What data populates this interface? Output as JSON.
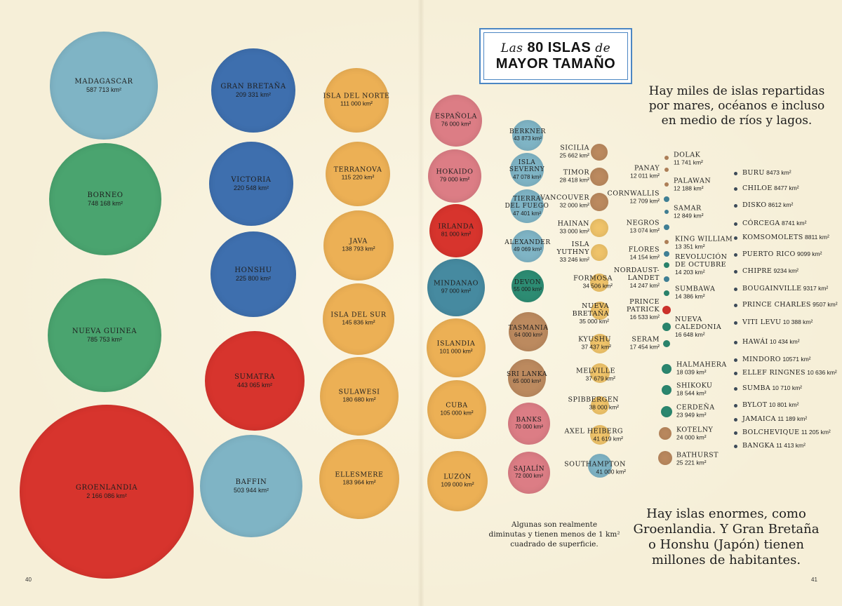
{
  "title": {
    "line1_italic_a": "Las",
    "line1_bold": "80 ISLAS",
    "line1_italic_b": "de",
    "line2": "MAYOR TAMAÑO"
  },
  "intro_text": [
    "Hay miles de islas repartidas",
    "por mares, océanos e incluso",
    "en medio de ríos y lagos."
  ],
  "outro_text": [
    "Hay islas enormes, como",
    "Groenlandia. Y Gran Bretaña",
    "o Honshu (Japón) tienen",
    "millones de habitantes."
  ],
  "tiny_note": [
    "Algunas son realmente",
    "diminutas y tienen  menos de 1 km²",
    "cuadrado de superficie."
  ],
  "page_left": "40",
  "page_right": "41",
  "colors": {
    "blue": "#3e6fae",
    "lightblue": "#7fb4c5",
    "green": "#4aa46f",
    "red": "#d7342d",
    "orange": "#ecb055",
    "pink": "#dc7d85",
    "teal": "#468aa0",
    "darkteal": "#2d8c73",
    "brown": "#bc8a5f",
    "paleorange": "#f0c46a",
    "background": "#f6efd8",
    "title_border": "#4b86c3"
  },
  "islands": [
    {
      "name": "MADAGASCAR",
      "area": "587 713 km²",
      "color": "#7fb4c5"
    },
    {
      "name": "BORNEO",
      "area": "748 168 km²",
      "color": "#4aa46f"
    },
    {
      "name": "NUEVA GUINEA",
      "area": "785 753 km²",
      "color": "#4aa46f"
    },
    {
      "name": "GROENLANDIA",
      "area": "2 166 086 km²",
      "color": "#d7342d"
    },
    {
      "name": "GRAN BRETAÑA",
      "area": "209 331 km²",
      "color": "#3e6fae"
    },
    {
      "name": "VICTORIA",
      "area": "220 548 km²",
      "color": "#3e6fae"
    },
    {
      "name": "HONSHU",
      "area": "225 800 km²",
      "color": "#3e6fae"
    },
    {
      "name": "SUMATRA",
      "area": "443 065 km²",
      "color": "#d7342d"
    },
    {
      "name": "BAFFIN",
      "area": "503 944 km²",
      "color": "#7fb4c5"
    },
    {
      "name": "ISLA DEL NORTE",
      "area": "111 000 km²",
      "color": "#ecb055"
    },
    {
      "name": "TERRANOVA",
      "area": "115 220 km²",
      "color": "#ecb055"
    },
    {
      "name": "JAVA",
      "area": "138 793 km²",
      "color": "#ecb055"
    },
    {
      "name": "ISLA DEL SUR",
      "area": "145 836 km²",
      "color": "#ecb055"
    },
    {
      "name": "SULAWESI",
      "area": "180 680 km²",
      "color": "#ecb055"
    },
    {
      "name": "ELLESMERE",
      "area": "183 964 km²",
      "color": "#ecb055"
    },
    {
      "name": "ESPAÑOLA",
      "area": "76 000 km²",
      "color": "#dc7d85"
    },
    {
      "name": "HOKAIDO",
      "area": "79 000 km²",
      "color": "#dc7d85"
    },
    {
      "name": "IRLANDA",
      "area": "81 000 km²",
      "color": "#d7342d"
    },
    {
      "name": "MINDANAO",
      "area": "97 000 km²",
      "color": "#468aa0"
    },
    {
      "name": "ISLANDIA",
      "area": "101 000 km²",
      "color": "#ecb055"
    },
    {
      "name": "CUBA",
      "area": "105 000 km²",
      "color": "#ecb055"
    },
    {
      "name": "LUZÓN",
      "area": "109 000 km²",
      "color": "#ecb055"
    },
    {
      "name": "BERKNER",
      "area": "43 873 km²",
      "color": "#7fb4c5"
    },
    {
      "name": "ISLA SEVERNY",
      "area": "47 078 km²",
      "color": "#7fb4c5"
    },
    {
      "name": "TIERRA DEL FUEGO",
      "area": "47 401 km²",
      "color": "#7fb4c5"
    },
    {
      "name": "ALEXANDER",
      "area": "49 069 km²",
      "color": "#7fb4c5"
    },
    {
      "name": "DEVON",
      "area": "55 000 km²",
      "color": "#2d8c73"
    },
    {
      "name": "TASMANIA",
      "area": "64 000 km²",
      "color": "#bc8a5f"
    },
    {
      "name": "SRI LANKA",
      "area": "65 000 km²",
      "color": "#bc8a5f"
    },
    {
      "name": "BANKS",
      "area": "70 000 km²",
      "color": "#dc7d85"
    },
    {
      "name": "SAJALÍN",
      "area": "72 000 km²",
      "color": "#dc7d85"
    },
    {
      "name": "SICILIA",
      "area": "25 662 km²",
      "color": "#bc8a5f"
    },
    {
      "name": "TIMOR",
      "area": "28 418 km²",
      "color": "#bc8a5f"
    },
    {
      "name": "VANCOUVER",
      "area": "32 000 km²",
      "color": "#bc8a5f"
    },
    {
      "name": "HAINAN",
      "area": "33 000 km²",
      "color": "#f0c46a"
    },
    {
      "name": "ISLA YUTHNY",
      "area": "33 246 km²",
      "color": "#f0c46a"
    },
    {
      "name": "FORMOSA",
      "area": "34 506 km²",
      "color": "#f0c46a"
    },
    {
      "name": "NUEVA BRETAÑA",
      "area": "35 000 km²",
      "color": "#f0c46a"
    },
    {
      "name": "KYUSHU",
      "area": "37 437 km²",
      "color": "#f0c46a"
    },
    {
      "name": "MELVILLE",
      "area": "37 679 km²",
      "color": "#f0c46a"
    },
    {
      "name": "SPIBBERGEN",
      "area": "38 000 km²",
      "color": "#f0c46a"
    },
    {
      "name": "AXEL HEIBERG",
      "area": "41 619 km²",
      "color": "#f0c46a"
    },
    {
      "name": "SOUTHAMPTON",
      "area": "41 000 km²",
      "color": "#7fb4c5"
    },
    {
      "name": "PANAY",
      "area": "12 011 km²",
      "color": "#bc8a5f"
    },
    {
      "name": "CORNWALLIS",
      "area": "12 709 km²",
      "color": "#468aa0"
    },
    {
      "name": "NEGROS",
      "area": "13 074 km²",
      "color": "#468aa0"
    },
    {
      "name": "FLORES",
      "area": "14 154 km²",
      "color": "#468aa0"
    },
    {
      "name": "NORDAUST-LANDET",
      "area": "14 247 km²",
      "color": "#468aa0"
    },
    {
      "name": "PRINCE PATRICK",
      "area": "16 533 km²",
      "color": "#d7342d"
    },
    {
      "name": "SERAM",
      "area": "17 454 km²",
      "color": "#2d8c73"
    },
    {
      "name": "DOLAK",
      "area": "11 741 km²",
      "color": "#bc8a5f"
    },
    {
      "name": "PALAWAN",
      "area": "12 188 km²",
      "color": "#bc8a5f"
    },
    {
      "name": "SAMAR",
      "area": "12 849 km²",
      "color": "#468aa0"
    },
    {
      "name": "KING WILLIAM",
      "area": "13 351 km²",
      "color": "#bc8a5f"
    },
    {
      "name": "REVOLUCIÓN DE OCTUBRE",
      "area": "14 203 km²",
      "color": "#2d8c73"
    },
    {
      "name": "SUMBAWA",
      "area": "14 386 km²",
      "color": "#2d8c73"
    },
    {
      "name": "NUEVA CALEDONIA",
      "area": "16 648 km²",
      "color": "#2d8c73"
    },
    {
      "name": "HALMAHERA",
      "area": "18 039 km²",
      "color": "#2d8c73"
    },
    {
      "name": "SHIKOKU",
      "area": "18 544 km²",
      "color": "#2d8c73"
    },
    {
      "name": "CERDEÑA",
      "area": "23 949 km²",
      "color": "#2d8c73"
    },
    {
      "name": "KOTELNY",
      "area": "24 000 km²",
      "color": "#bc8a5f"
    },
    {
      "name": "BATHURST",
      "area": "25 221 km²",
      "color": "#bc8a5f"
    },
    {
      "name": "BURU",
      "area": "8473 km²"
    },
    {
      "name": "CHILOE",
      "area": "8477 km²"
    },
    {
      "name": "DISKO",
      "area": "8612 km²"
    },
    {
      "name": "CÓRCEGA",
      "area": "8741 km²"
    },
    {
      "name": "KOMSOMOLETS",
      "area": "8811 km²"
    },
    {
      "name": "PUERTO RICO",
      "area": "9099 km²"
    },
    {
      "name": "CHIPRE",
      "area": "9234 km²"
    },
    {
      "name": "BOUGAINVILLE",
      "area": "9317 km²"
    },
    {
      "name": "PRINCE CHARLES",
      "area": "9507 km²"
    },
    {
      "name": "VITI LEVU",
      "area": "10 388 km²"
    },
    {
      "name": "HAWÁI",
      "area": "10 434 km²"
    },
    {
      "name": "MINDORO",
      "area": "10571 km²"
    },
    {
      "name": "ELLEF RINGNES",
      "area": "10 636 km²"
    },
    {
      "name": "SUMBA",
      "area": "10 710 km²"
    },
    {
      "name": "BYLOT",
      "area": "10 801 km²"
    },
    {
      "name": "JAMAICA",
      "area": "11 189 km²"
    },
    {
      "name": "BOLCHEVIQUE",
      "area": "11 205 km²"
    },
    {
      "name": "BANGKA",
      "area": "11 413 km²"
    }
  ]
}
